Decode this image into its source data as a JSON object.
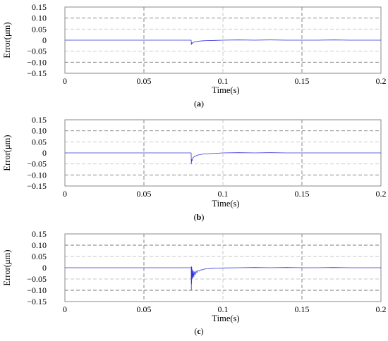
{
  "chart_data": [
    {
      "type": "line",
      "caption": "(a)",
      "xlabel": "Time(s)",
      "ylabel": "Error(μm)",
      "xlim": [
        0,
        0.2
      ],
      "ylim": [
        -0.15,
        0.15
      ],
      "xticks": [
        0,
        0.05,
        0.1,
        0.15,
        0.2
      ],
      "xtick_labels": [
        "0",
        "0.05",
        "0.1",
        "0.15",
        "0.2"
      ],
      "yticks": [
        0.15,
        0.1,
        0.05,
        0,
        -0.05,
        -0.1,
        -0.15
      ],
      "ytick_labels": [
        "0.15",
        "0.10",
        "0.05",
        "0",
        "−0.05",
        "−0.10",
        "−0.15"
      ],
      "grid": true,
      "line_color": "#3333dd",
      "series": [
        {
          "x": [
            0,
            0.0799,
            0.08,
            0.0802,
            0.0805,
            0.081,
            0.082,
            0.084,
            0.087,
            0.09,
            0.095,
            0.1,
            0.11,
            0.12,
            0.13,
            0.14,
            0.15,
            0.16,
            0.17,
            0.18,
            0.19,
            0.2
          ],
          "y": [
            0,
            0,
            -0.02,
            -0.012,
            -0.015,
            -0.011,
            -0.008,
            -0.005,
            -0.003,
            -0.002,
            -0.001,
            0,
            0.001,
            0,
            0.001,
            0,
            0,
            0,
            0.001,
            0,
            0,
            0
          ]
        }
      ]
    },
    {
      "type": "line",
      "caption": "(b)",
      "xlabel": "Time(s)",
      "ylabel": "Error(μm)",
      "xlim": [
        0,
        0.2
      ],
      "ylim": [
        -0.15,
        0.15
      ],
      "xticks": [
        0,
        0.05,
        0.1,
        0.15,
        0.2
      ],
      "xtick_labels": [
        "0",
        "0.05",
        "0.1",
        "0.15",
        "0.2"
      ],
      "yticks": [
        0.15,
        0.1,
        0.05,
        0,
        -0.05,
        -0.1,
        -0.15
      ],
      "ytick_labels": [
        "0.15",
        "0.10",
        "0.05",
        "0",
        "−0.05",
        "−0.10",
        "−0.15"
      ],
      "grid": true,
      "line_color": "#3333dd",
      "series": [
        {
          "x": [
            0,
            0.0799,
            0.08,
            0.0802,
            0.0805,
            0.081,
            0.082,
            0.084,
            0.087,
            0.09,
            0.095,
            0.1,
            0.11,
            0.12,
            0.13,
            0.14,
            0.15,
            0.16,
            0.17,
            0.18,
            0.19,
            0.2
          ],
          "y": [
            0,
            0,
            -0.05,
            -0.03,
            -0.035,
            -0.022,
            -0.016,
            -0.01,
            -0.006,
            -0.004,
            -0.002,
            0,
            0.001,
            0,
            0.001,
            0,
            0,
            0,
            0,
            0,
            0,
            0
          ]
        }
      ]
    },
    {
      "type": "line",
      "caption": "(c)",
      "xlabel": "Time(s)",
      "ylabel": "Error(μm)",
      "xlim": [
        0,
        0.2
      ],
      "ylim": [
        -0.15,
        0.15
      ],
      "xticks": [
        0,
        0.05,
        0.1,
        0.15,
        0.2
      ],
      "xtick_labels": [
        "0",
        "0.05",
        "0.1",
        "0.15",
        "0.2"
      ],
      "yticks": [
        0.15,
        0.1,
        0.05,
        0,
        -0.05,
        -0.1,
        -0.15
      ],
      "ytick_labels": [
        "0.15",
        "0.10",
        "0.05",
        "0",
        "−0.05",
        "−0.10",
        "−0.15"
      ],
      "grid": true,
      "line_color": "#3333dd",
      "series": [
        {
          "x": [
            0,
            0.0799,
            0.08,
            0.0801,
            0.0802,
            0.0803,
            0.0805,
            0.0807,
            0.081,
            0.0813,
            0.0816,
            0.082,
            0.0825,
            0.083,
            0.0835,
            0.084,
            0.085,
            0.086,
            0.087,
            0.088,
            0.09,
            0.093,
            0.096,
            0.1,
            0.11,
            0.12,
            0.13,
            0.14,
            0.15,
            0.16,
            0.17,
            0.18,
            0.19,
            0.2
          ],
          "y": [
            0,
            0,
            -0.1,
            0.005,
            -0.07,
            0.002,
            -0.05,
            -0.01,
            -0.045,
            -0.015,
            -0.04,
            -0.018,
            -0.03,
            -0.015,
            -0.022,
            -0.012,
            -0.015,
            -0.009,
            -0.01,
            -0.006,
            -0.005,
            -0.003,
            -0.002,
            -0.001,
            0,
            0.001,
            0,
            0.001,
            0,
            0,
            0.001,
            0,
            0,
            0
          ]
        }
      ]
    }
  ]
}
